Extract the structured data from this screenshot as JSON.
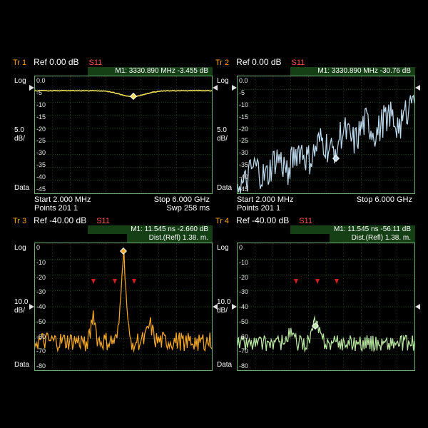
{
  "layout": {
    "rows": 2,
    "cols": 2
  },
  "colors": {
    "bg": "#000000",
    "grid": "#3b6b3b",
    "border": "#6faa6f",
    "text": "#ffffff",
    "tr_label": "#ffa500",
    "s_label": "#ff5050",
    "marker_bg": "#153f15"
  },
  "panels": [
    {
      "tr": "Tr 1",
      "ref": "Ref 0.00 dB",
      "s": "S11",
      "marker": "M1: 3330.890 MHz   -3.455 dB",
      "dist": "",
      "y_top_label": "Log",
      "y_mid_label": "5.0\ndB/",
      "y_bot_label": "Data",
      "yticks": [
        "0.0",
        "-5",
        "-10",
        "-15",
        "-20",
        "-25",
        "-30",
        "-35",
        "-40",
        "-45"
      ],
      "ylim": [
        -45,
        5
      ],
      "ref_level": 0,
      "trace_color": "#eedd55",
      "trace_style": "flat_dip",
      "marker_x": 0.555,
      "footer_l": "Start 2.000 MHz",
      "footer_r": "Stop 6.000 GHz",
      "footer2_l": "Points 201   1",
      "footer2_r": "Swp 258 ms"
    },
    {
      "tr": "Tr 2",
      "ref": "Ref 0.00 dB",
      "s": "S11",
      "marker": "M1: 3330.890 MHz   -30.76 dB",
      "dist": "",
      "y_top_label": "Log",
      "y_mid_label": "5.0\ndB/",
      "y_bot_label": "Data",
      "yticks": [
        "0.0",
        "-5",
        "-10",
        "-15",
        "-20",
        "-25",
        "-30",
        "-35",
        "-40",
        "-45"
      ],
      "ylim": [
        -45,
        5
      ],
      "ref_level": 0,
      "trace_color": "#bcd8ec",
      "trace_style": "noise_rise",
      "marker_x": 0.555,
      "footer_l": "Start 2.000 MHz",
      "footer_r": "Stop 6.000 GHz",
      "footer2_l": "Points 201   1",
      "footer2_r": ""
    },
    {
      "tr": "Tr 3",
      "ref": "Ref -40.00 dB",
      "s": "S11",
      "marker": "M1:   11.545 ns    -2.660 dB",
      "dist": "Dist.(Refl) 1.38. m.",
      "y_top_label": "Log",
      "y_mid_label": "10.0\ndB/",
      "y_bot_label": "Data",
      "yticks": [
        "0",
        "-10",
        "-20",
        "-30",
        "-40",
        "-50",
        "-60",
        "-70",
        "-80"
      ],
      "ylim": [
        -80,
        0
      ],
      "ref_level": -40,
      "trace_color": "#f5a623",
      "trace_style": "noise_peak",
      "marker_x": 0.5,
      "footer_l": "",
      "footer_r": "",
      "footer2_l": "",
      "footer2_r": ""
    },
    {
      "tr": "Tr 4",
      "ref": "Ref -40.00 dB",
      "s": "S11",
      "marker": "M1:   11.545 ns    -56.11 dB",
      "dist": "Dist.(Refl) 1.38. m.",
      "y_top_label": "Log",
      "y_mid_label": "10.0\ndB/",
      "y_bot_label": "Data",
      "yticks": [
        "0",
        "-10",
        "-20",
        "-30",
        "-40",
        "-50",
        "-60",
        "-70",
        "-80"
      ],
      "ylim": [
        -80,
        0
      ],
      "ref_level": -40,
      "trace_color": "#b8e6a0",
      "trace_style": "noise_low",
      "marker_x": 0.44,
      "footer_l": "",
      "footer_r": "",
      "footer2_l": "",
      "footer2_r": ""
    }
  ]
}
